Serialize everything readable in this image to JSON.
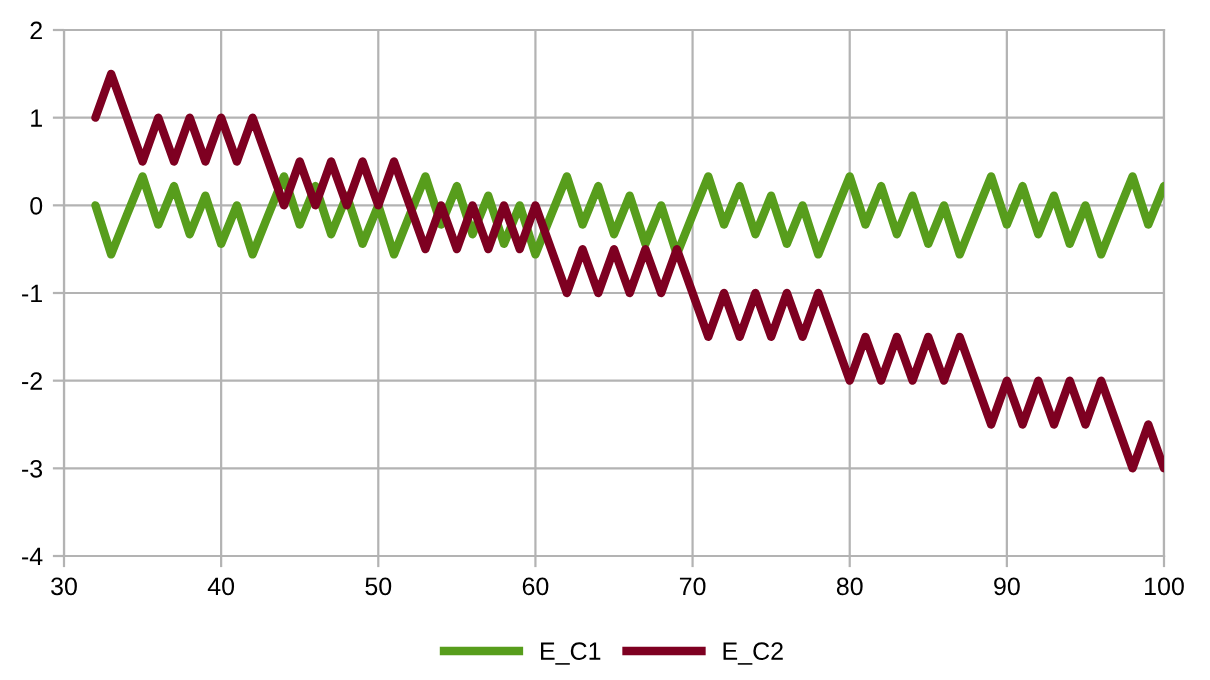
{
  "chart_data": {
    "type": "line",
    "x": [
      32,
      33,
      34,
      35,
      36,
      37,
      38,
      39,
      40,
      41,
      42,
      43,
      44,
      45,
      46,
      47,
      48,
      49,
      50,
      51,
      52,
      53,
      54,
      55,
      56,
      57,
      58,
      59,
      60,
      61,
      62,
      63,
      64,
      65,
      66,
      67,
      68,
      69,
      70,
      71,
      72,
      73,
      74,
      75,
      76,
      77,
      78,
      79,
      80,
      81,
      82,
      83,
      84,
      85,
      86,
      87,
      88,
      89,
      90,
      91,
      92,
      93,
      94,
      95,
      96,
      97,
      98,
      99,
      100
    ],
    "series": [
      {
        "name": "E_C1",
        "color": "#579d1c",
        "values": [
          0,
          -0.56,
          -0.11,
          0.33,
          -0.22,
          0.22,
          -0.33,
          0.11,
          -0.44,
          0,
          -0.56,
          -0.11,
          0.33,
          -0.22,
          0.22,
          -0.33,
          0.11,
          -0.44,
          0,
          -0.56,
          -0.11,
          0.33,
          -0.22,
          0.22,
          -0.33,
          0.11,
          -0.44,
          0,
          -0.56,
          -0.11,
          0.33,
          -0.22,
          0.22,
          -0.33,
          0.11,
          -0.44,
          0,
          -0.56,
          -0.11,
          0.33,
          -0.22,
          0.22,
          -0.33,
          0.11,
          -0.44,
          0,
          -0.56,
          -0.11,
          0.33,
          -0.22,
          0.22,
          -0.33,
          0.11,
          -0.44,
          0,
          -0.56,
          -0.11,
          0.33,
          -0.22,
          0.22,
          -0.33,
          0.11,
          -0.44,
          0,
          -0.56,
          -0.11,
          0.33,
          -0.22,
          0.22
        ]
      },
      {
        "name": "E_C2",
        "color": "#7e0021",
        "values": [
          1,
          1.5,
          1,
          0.5,
          1,
          0.5,
          1,
          0.5,
          1,
          0.5,
          1,
          0.5,
          0,
          0.5,
          0,
          0.5,
          0,
          0.5,
          0,
          0.5,
          0,
          -0.5,
          0,
          -0.5,
          0,
          -0.5,
          0,
          -0.5,
          0,
          -0.5,
          -1,
          -0.5,
          -1,
          -0.5,
          -1,
          -0.5,
          -1,
          -0.5,
          -1,
          -1.5,
          -1,
          -1.5,
          -1,
          -1.5,
          -1,
          -1.5,
          -1,
          -1.5,
          -2,
          -1.5,
          -2,
          -1.5,
          -2,
          -1.5,
          -2,
          -1.5,
          -2,
          -2.5,
          -2,
          -2.5,
          -2,
          -2.5,
          -2,
          -2.5,
          -2,
          -2.5,
          -3,
          -2.5,
          -3
        ]
      }
    ],
    "xlim": [
      30,
      100
    ],
    "xticks": [
      30,
      40,
      50,
      60,
      70,
      80,
      90,
      100
    ],
    "ylim": [
      -4,
      2
    ],
    "yticks": [
      -4,
      -3,
      -2,
      -1,
      0,
      1,
      2
    ],
    "grid": true,
    "legend": "bottom",
    "marker": "none",
    "line_style": "solid"
  }
}
